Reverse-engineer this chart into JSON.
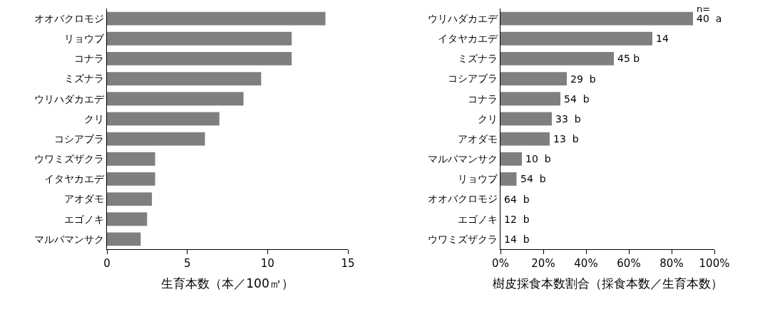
{
  "chart_data": [
    {
      "type": "bar",
      "orientation": "horizontal",
      "xlabel": "生育本数（本／100㎡）",
      "categories": [
        "オオバクロモジ",
        "リョウブ",
        "コナラ",
        "ミズナラ",
        "ウリハダカエデ",
        "クリ",
        "コシアブラ",
        "ウワミズザクラ",
        "イタヤカエデ",
        "アオダモ",
        "エゴノキ",
        "マルバマンサク"
      ],
      "values": [
        13.6,
        11.5,
        11.5,
        9.6,
        8.5,
        7.0,
        6.1,
        3.0,
        3.0,
        2.8,
        2.5,
        2.1
      ],
      "color": "#7f7f7f",
      "xlim": [
        0,
        15
      ],
      "xticks": [
        0,
        5,
        10,
        15
      ],
      "grid": false
    },
    {
      "type": "bar",
      "orientation": "horizontal",
      "xlabel": "樹皮採食本数割合（採食本数／生育本数）",
      "categories": [
        "ウリハダカエデ",
        "イタヤカエデ",
        "ミズナラ",
        "コシアブラ",
        "コナラ",
        "クリ",
        "アオダモ",
        "マルバマンサク",
        "リョウブ",
        "オオバクロモジ",
        "エゴノキ",
        "ウワミズザクラ"
      ],
      "values": [
        90,
        71,
        53,
        31,
        28,
        24,
        23,
        10,
        7.5,
        0,
        0,
        0
      ],
      "color": "#7f7f7f",
      "xlim": [
        0,
        100
      ],
      "xticks": [
        {
          "value": 0,
          "label": "0%"
        },
        {
          "value": 20,
          "label": "20%"
        },
        {
          "value": 40,
          "label": "40%"
        },
        {
          "value": 60,
          "label": "60%"
        },
        {
          "value": 80,
          "label": "80%"
        },
        {
          "value": 100,
          "label": "100%"
        }
      ],
      "grid": false,
      "annotations": [
        "n=",
        {
          "text": "40  a",
          "x": 90,
          "y": "ウリハダカエデ"
        },
        {
          "text": "14",
          "x": 71,
          "y": "イタヤカエデ"
        },
        {
          "text": "45 b",
          "x": 53,
          "y": "ミズナラ"
        },
        {
          "text": "29  b",
          "x": 31,
          "y": "コシアブラ"
        },
        {
          "text": "54  b",
          "x": 28,
          "y": "コナラ"
        },
        {
          "text": "33  b",
          "x": 24,
          "y": "クリ"
        },
        {
          "text": "13  b",
          "x": 23,
          "y": "アオダモ"
        },
        {
          "text": "10  b",
          "x": 10,
          "y": "マルバマンサク"
        },
        {
          "text": "54  b",
          "x": 7.5,
          "y": "リョウブ"
        },
        {
          "text": "64  b",
          "x": 0,
          "y": "オオバクロモジ"
        },
        {
          "text": "12  b",
          "x": 0,
          "y": "エゴノキ"
        },
        {
          "text": "14  b",
          "x": 0,
          "y": "ウワミズザクラ"
        }
      ]
    }
  ]
}
